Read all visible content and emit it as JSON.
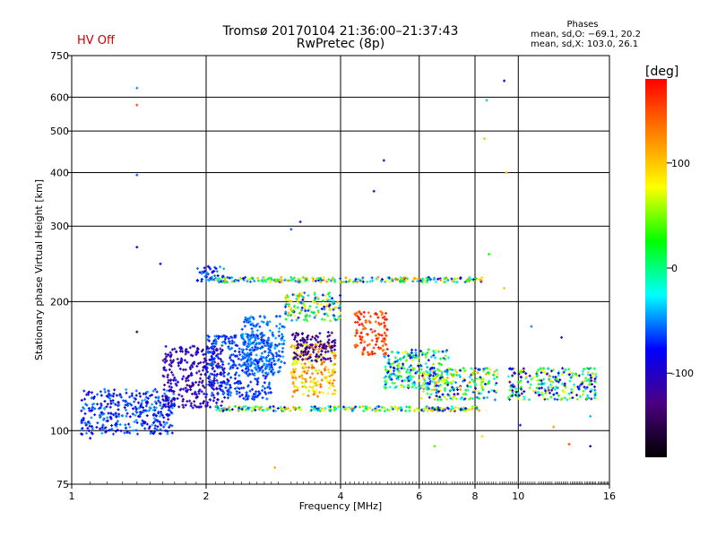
{
  "header": {
    "title": "Tromsø 20170104 21:36:00–21:37:43",
    "subtitle": "RwPretec (8p)",
    "status": "HV Off",
    "stats_title": "Phases",
    "stats_o": "mean, sd,O: −69.1, 20.2",
    "stats_x": "mean, sd,X: 103.0, 26.1"
  },
  "colors": {
    "status": "#cc0000"
  },
  "chart_data": {
    "type": "scatter",
    "xlabel": "Frequency [MHz]",
    "ylabel": "Stationary phase Virtual Height [km]",
    "xscale": "log",
    "yscale": "log",
    "xlim": [
      1,
      16
    ],
    "ylim": [
      75,
      750
    ],
    "xticks": [
      1,
      2,
      4,
      6,
      8,
      10,
      16
    ],
    "yticks": [
      75,
      100,
      200,
      300,
      400,
      500,
      600,
      750
    ],
    "grid": true,
    "colorbar": {
      "label": "[deg]",
      "range": [
        -180,
        180
      ],
      "ticks": [
        100,
        0,
        -100
      ],
      "colors": [
        "#000000",
        "#4b0082",
        "#0000ff",
        "#00ffff",
        "#00ff00",
        "#ffff00",
        "#ff8000",
        "#ff0000"
      ]
    },
    "bands": [
      {
        "x": [
          1.05,
          1.7
        ],
        "y": [
          98,
          125
        ],
        "phase": [
          -100,
          -40
        ]
      },
      {
        "x": [
          1.6,
          2.2
        ],
        "y": [
          113,
          158
        ],
        "phase": [
          -130,
          -80
        ]
      },
      {
        "x": [
          2.0,
          2.8
        ],
        "y": [
          118,
          168
        ],
        "phase": [
          -80,
          -50
        ]
      },
      {
        "x": [
          2.4,
          3.0
        ],
        "y": [
          135,
          185
        ],
        "phase": [
          -70,
          -40
        ]
      },
      {
        "x": [
          1.9,
          2.2
        ],
        "y": [
          222,
          242
        ],
        "phase": [
          -90,
          -40
        ]
      },
      {
        "x": [
          2.1,
          8.3
        ],
        "y": [
          222,
          228
        ],
        "phase": [
          -100,
          140
        ]
      },
      {
        "x": [
          2.1,
          8.2
        ],
        "y": [
          111,
          114
        ],
        "phase": [
          -110,
          120
        ]
      },
      {
        "x": [
          3.1,
          3.9
        ],
        "y": [
          120,
          160
        ],
        "phase": [
          60,
          150
        ]
      },
      {
        "x": [
          4.3,
          5.1
        ],
        "y": [
          150,
          190
        ],
        "phase": [
          130,
          180
        ]
      },
      {
        "x": [
          3.1,
          3.9
        ],
        "y": [
          145,
          170
        ],
        "phase": [
          -150,
          -100
        ]
      },
      {
        "x": [
          5.0,
          7.0
        ],
        "y": [
          125,
          155
        ],
        "phase": [
          -100,
          80
        ]
      },
      {
        "x": [
          6.0,
          9.0
        ],
        "y": [
          118,
          140
        ],
        "phase": [
          -120,
          120
        ]
      },
      {
        "x": [
          9.5,
          15.0
        ],
        "y": [
          118,
          140
        ],
        "phase": [
          -130,
          100
        ]
      },
      {
        "x": [
          3.0,
          4.0
        ],
        "y": [
          180,
          210
        ],
        "phase": [
          -100,
          120
        ]
      }
    ],
    "sparse": [
      {
        "x": 1.4,
        "y": 630,
        "phase": -50
      },
      {
        "x": 1.4,
        "y": 575,
        "phase": 150
      },
      {
        "x": 1.4,
        "y": 395,
        "phase": -60
      },
      {
        "x": 1.4,
        "y": 268,
        "phase": -90
      },
      {
        "x": 1.4,
        "y": 170,
        "phase": -150
      },
      {
        "x": 1.58,
        "y": 245,
        "phase": -100
      },
      {
        "x": 3.25,
        "y": 307,
        "phase": -110
      },
      {
        "x": 3.1,
        "y": 295,
        "phase": -60
      },
      {
        "x": 5.0,
        "y": 427,
        "phase": -110
      },
      {
        "x": 4.75,
        "y": 362,
        "phase": -120
      },
      {
        "x": 8.5,
        "y": 590,
        "phase": -40
      },
      {
        "x": 9.3,
        "y": 655,
        "phase": -100
      },
      {
        "x": 9.4,
        "y": 400,
        "phase": 110
      },
      {
        "x": 8.6,
        "y": 258,
        "phase": 30
      },
      {
        "x": 8.4,
        "y": 480,
        "phase": 100
      },
      {
        "x": 9.3,
        "y": 215,
        "phase": 100
      },
      {
        "x": 2.85,
        "y": 82,
        "phase": 110
      },
      {
        "x": 6.5,
        "y": 92,
        "phase": 40
      },
      {
        "x": 8.3,
        "y": 97,
        "phase": 90
      },
      {
        "x": 10.1,
        "y": 103,
        "phase": -70
      },
      {
        "x": 13.0,
        "y": 93,
        "phase": 150
      },
      {
        "x": 14.5,
        "y": 92,
        "phase": -120
      },
      {
        "x": 1.1,
        "y": 96,
        "phase": -100
      },
      {
        "x": 10.7,
        "y": 175,
        "phase": -50
      },
      {
        "x": 12.5,
        "y": 165,
        "phase": -110
      },
      {
        "x": 14.5,
        "y": 108,
        "phase": -40
      },
      {
        "x": 12.0,
        "y": 102,
        "phase": 120
      }
    ]
  }
}
